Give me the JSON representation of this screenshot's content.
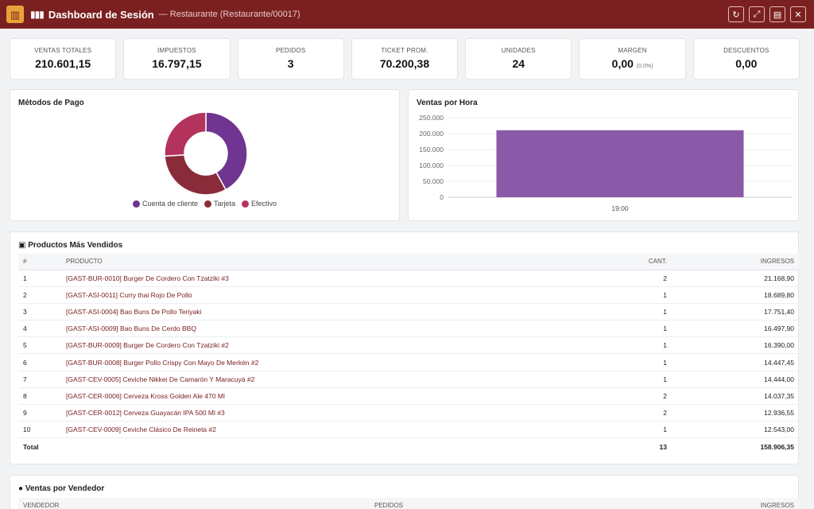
{
  "header": {
    "title": "Dashboard de Sesión",
    "subtitle": "— Restaurante (Restaurante/00017)",
    "actions": [
      {
        "name": "refresh-button",
        "icon": "refresh-icon"
      },
      {
        "name": "expand-button",
        "icon": "expand-icon"
      },
      {
        "name": "pdf-button",
        "icon": "pdf-icon"
      },
      {
        "name": "close-button",
        "icon": "close-icon"
      }
    ]
  },
  "kpis": [
    {
      "label": "VENTAS TOTALES",
      "value": "210.601,15",
      "sub": ""
    },
    {
      "label": "IMPUESTOS",
      "value": "16.797,15",
      "sub": ""
    },
    {
      "label": "PEDIDOS",
      "value": "3",
      "sub": ""
    },
    {
      "label": "TICKET PROM.",
      "value": "70.200,38",
      "sub": ""
    },
    {
      "label": "UNIDADES",
      "value": "24",
      "sub": ""
    },
    {
      "label": "MARGEN",
      "value": "0,00",
      "sub": "(0.0%)"
    },
    {
      "label": "DESCUENTOS",
      "value": "0,00",
      "sub": ""
    }
  ],
  "payment_chart_title": "Métodos de Pago",
  "hourly_chart_title": "Ventas por Hora",
  "chart_data": [
    {
      "type": "pie",
      "title": "Métodos de Pago",
      "donut": true,
      "categories": [
        "Cuenta de cliente",
        "Tarjeta",
        "Efectivo"
      ],
      "values": [
        42,
        32,
        26
      ],
      "colors": [
        "#6f3591",
        "#8a2b3a",
        "#b4335c"
      ],
      "legend": "bottom"
    },
    {
      "type": "bar",
      "title": "Ventas por Hora",
      "categories": [
        "19:00"
      ],
      "values": [
        210601.15
      ],
      "ylim": [
        0,
        250000
      ],
      "yticks": [
        "0",
        "50.000",
        "100.000",
        "150.000",
        "200.000",
        "250.000"
      ],
      "color": "#8a5aa8",
      "grid": true
    }
  ],
  "products": {
    "title": "Productos Más Vendidos",
    "columns": [
      "#",
      "PRODUCTO",
      "CANT.",
      "INGRESOS"
    ],
    "rows": [
      {
        "n": "1",
        "product": "[GAST-BUR-0010] Burger De Cordero Con Tzatziki #3",
        "qty": "2",
        "revenue": "21.168,90"
      },
      {
        "n": "2",
        "product": "[GAST-ASI-0011] Curry thai Rojo De Pollo",
        "qty": "1",
        "revenue": "18.689,80"
      },
      {
        "n": "3",
        "product": "[GAST-ASI-0004] Bao Buns De Pollo Teriyaki",
        "qty": "1",
        "revenue": "17.751,40"
      },
      {
        "n": "4",
        "product": "[GAST-ASI-0009] Bao Buns De Cerdo BBQ",
        "qty": "1",
        "revenue": "16.497,90"
      },
      {
        "n": "5",
        "product": "[GAST-BUR-0009] Burger De Cordero Con Tzatziki #2",
        "qty": "1",
        "revenue": "16.390,00"
      },
      {
        "n": "6",
        "product": "[GAST-BUR-0008] Burger Pollo Crispy Con Mayo De Merkén #2",
        "qty": "1",
        "revenue": "14.447,45"
      },
      {
        "n": "7",
        "product": "[GAST-CEV-0005] Ceviche Nikkei De Camarón Y Maracuyá #2",
        "qty": "1",
        "revenue": "14.444,00"
      },
      {
        "n": "8",
        "product": "[GAST-CER-0006] Cerveza Kross Golden Ale 470 Ml",
        "qty": "2",
        "revenue": "14.037,35"
      },
      {
        "n": "9",
        "product": "[GAST-CER-0012] Cerveza Guayacán IPA 500 Ml #3",
        "qty": "2",
        "revenue": "12.936,55"
      },
      {
        "n": "10",
        "product": "[GAST-CEV-0009] Ceviche Clásico De Reineta #2",
        "qty": "1",
        "revenue": "12.543,00"
      }
    ],
    "total": {
      "label": "Total",
      "qty": "13",
      "revenue": "158.906,35"
    }
  },
  "sellers": {
    "title": "Ventas por Vendedor",
    "columns": [
      "VENDEDOR",
      "PEDIDOS",
      "INGRESOS"
    ]
  }
}
